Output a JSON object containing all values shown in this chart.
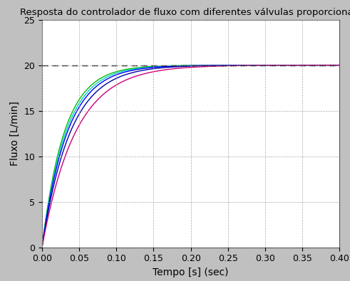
{
  "title": "Resposta do controlador de fluxo com diferentes válvulas proporcionais",
  "xlabel": "Tempo [s] (sec)",
  "ylabel": "Fluxo [L/min]",
  "xlim": [
    0,
    0.4
  ],
  "ylim": [
    0,
    25
  ],
  "xticks": [
    0,
    0.05,
    0.1,
    0.15,
    0.2,
    0.25,
    0.3,
    0.35,
    0.4
  ],
  "yticks": [
    0,
    5,
    10,
    15,
    20,
    25
  ],
  "setpoint": 20.0,
  "background_color": "#c0c0c0",
  "plot_bg_color": "#ffffff",
  "curves": [
    {
      "tau": 0.03,
      "color": "#00bb00",
      "lw": 1.0
    },
    {
      "tau": 0.032,
      "color": "#00cccc",
      "lw": 1.0
    },
    {
      "tau": 0.034,
      "color": "#0000ff",
      "lw": 1.0
    },
    {
      "tau": 0.038,
      "color": "#0000aa",
      "lw": 1.0
    },
    {
      "tau": 0.045,
      "color": "#cc0077",
      "lw": 1.0
    }
  ],
  "dashed_line_y": 20.0,
  "dashed_line_color": "#000000",
  "title_fontsize": 9.5,
  "label_fontsize": 10,
  "tick_fontsize": 9,
  "grid_color": "#aaaaaa",
  "grid_alpha": 1.0
}
